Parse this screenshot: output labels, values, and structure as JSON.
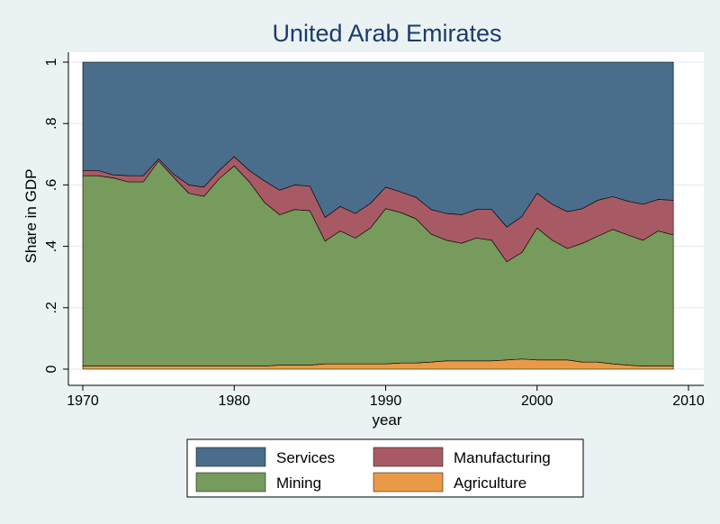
{
  "chart_data": {
    "type": "area",
    "stacked": true,
    "title": "United Arab Emirates",
    "xlabel": "year",
    "ylabel": "Share in GDP",
    "xlim": [
      1970,
      2010
    ],
    "ylim": [
      0,
      1
    ],
    "x_ticks": [
      "1970",
      "1980",
      "1990",
      "2000",
      "2010"
    ],
    "y_ticks": [
      "0",
      ".2",
      ".4",
      ".6",
      ".8",
      "1"
    ],
    "grid": true,
    "legend_position": "bottom",
    "x": [
      1970,
      1971,
      1972,
      1973,
      1974,
      1975,
      1976,
      1977,
      1978,
      1979,
      1980,
      1981,
      1982,
      1983,
      1984,
      1985,
      1986,
      1987,
      1988,
      1989,
      1990,
      1991,
      1992,
      1993,
      1994,
      1995,
      1996,
      1997,
      1998,
      1999,
      2000,
      2001,
      2002,
      2003,
      2004,
      2005,
      2006,
      2007,
      2008,
      2009
    ],
    "series": [
      {
        "name": "Agriculture",
        "color": "#ea9a46",
        "values": [
          0.01,
          0.01,
          0.01,
          0.01,
          0.01,
          0.01,
          0.01,
          0.01,
          0.01,
          0.01,
          0.01,
          0.01,
          0.01,
          0.013,
          0.013,
          0.013,
          0.017,
          0.017,
          0.017,
          0.017,
          0.017,
          0.02,
          0.02,
          0.023,
          0.027,
          0.027,
          0.027,
          0.027,
          0.03,
          0.033,
          0.03,
          0.03,
          0.03,
          0.023,
          0.023,
          0.017,
          0.013,
          0.01,
          0.01,
          0.01
        ]
      },
      {
        "name": "Mining",
        "color": "#779a5d",
        "values": [
          0.62,
          0.62,
          0.613,
          0.6,
          0.6,
          0.668,
          0.615,
          0.563,
          0.553,
          0.61,
          0.652,
          0.6,
          0.533,
          0.49,
          0.507,
          0.503,
          0.4,
          0.433,
          0.41,
          0.443,
          0.506,
          0.49,
          0.47,
          0.417,
          0.393,
          0.383,
          0.4,
          0.393,
          0.32,
          0.347,
          0.43,
          0.39,
          0.363,
          0.387,
          0.41,
          0.438,
          0.424,
          0.41,
          0.44,
          0.427
        ]
      },
      {
        "name": "Manufacturing",
        "color": "#a85a64",
        "values": [
          0.017,
          0.017,
          0.01,
          0.02,
          0.02,
          0.007,
          0.01,
          0.027,
          0.03,
          0.027,
          0.03,
          0.037,
          0.07,
          0.08,
          0.08,
          0.08,
          0.077,
          0.08,
          0.08,
          0.08,
          0.07,
          0.067,
          0.07,
          0.08,
          0.087,
          0.093,
          0.093,
          0.1,
          0.113,
          0.117,
          0.113,
          0.117,
          0.12,
          0.113,
          0.117,
          0.107,
          0.11,
          0.117,
          0.103,
          0.113
        ]
      },
      {
        "name": "Services",
        "color": "#4a6d8b",
        "values": [
          0.353,
          0.353,
          0.367,
          0.37,
          0.37,
          0.315,
          0.365,
          0.4,
          0.407,
          0.353,
          0.308,
          0.353,
          0.387,
          0.417,
          0.4,
          0.404,
          0.506,
          0.47,
          0.493,
          0.46,
          0.407,
          0.423,
          0.44,
          0.48,
          0.493,
          0.497,
          0.48,
          0.48,
          0.537,
          0.503,
          0.427,
          0.463,
          0.487,
          0.477,
          0.45,
          0.438,
          0.453,
          0.463,
          0.447,
          0.45
        ]
      }
    ]
  },
  "legend": {
    "items": [
      {
        "label": "Services",
        "color": "#4a6d8b"
      },
      {
        "label": "Manufacturing",
        "color": "#a85a64"
      },
      {
        "label": "Mining",
        "color": "#779a5d"
      },
      {
        "label": "Agriculture",
        "color": "#ea9a46"
      }
    ]
  }
}
